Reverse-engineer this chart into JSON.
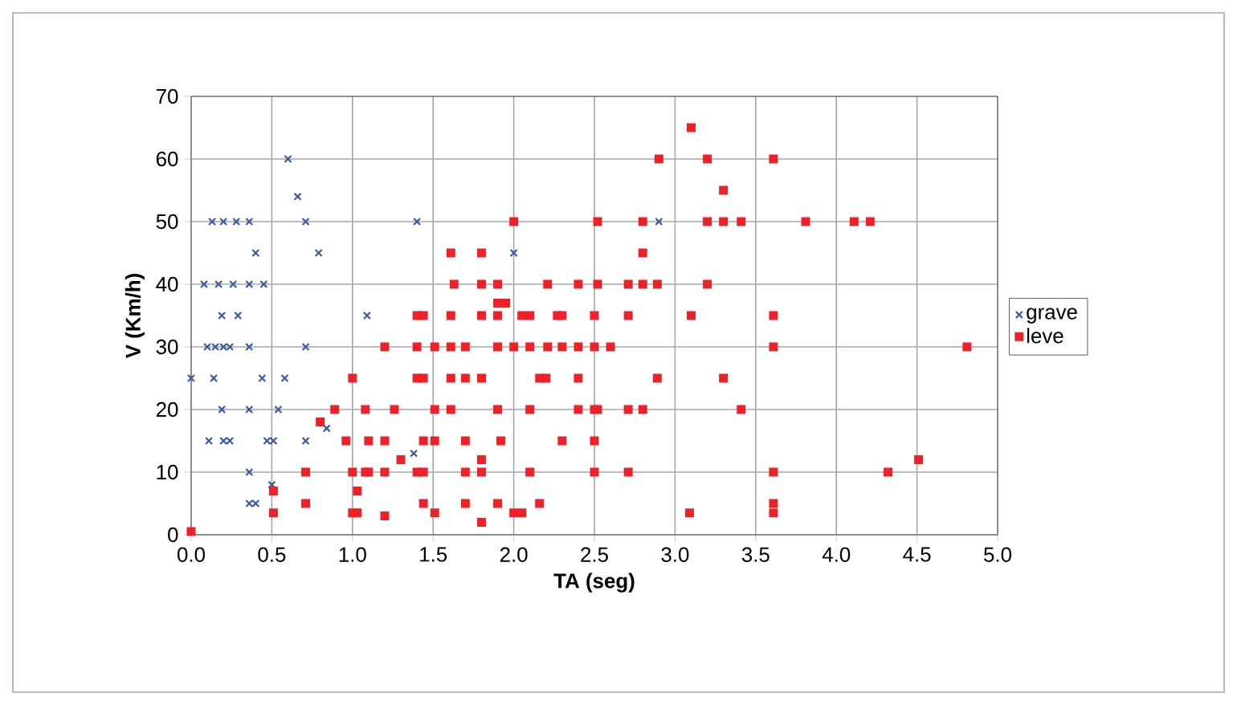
{
  "chart_data": {
    "type": "scatter",
    "xlabel": "TA (seg)",
    "ylabel": "V (Km/h)",
    "xlim": [
      0,
      5
    ],
    "ylim": [
      0,
      70
    ],
    "xticks": [
      {
        "value": 0,
        "label": "0.0"
      },
      {
        "value": 0.5,
        "label": "0.5"
      },
      {
        "value": 1,
        "label": "1.0"
      },
      {
        "value": 1.5,
        "label": "1.5"
      },
      {
        "value": 2,
        "label": "2.0"
      },
      {
        "value": 2.5,
        "label": "2.5"
      },
      {
        "value": 3,
        "label": "3.0"
      },
      {
        "value": 3.5,
        "label": "3.5"
      },
      {
        "value": 4,
        "label": "4.0"
      },
      {
        "value": 4.5,
        "label": "4.5"
      },
      {
        "value": 5,
        "label": "5.0"
      }
    ],
    "yticks": [
      0,
      10,
      20,
      30,
      40,
      50,
      60,
      70
    ],
    "grid": true,
    "legend": "right",
    "series": [
      {
        "name": "grave",
        "color": "#3a58a8",
        "marker": "cross",
        "x": [
          0,
          0.6,
          0.66,
          0.13,
          0.2,
          0.28,
          0.36,
          0.71,
          1.4,
          2.9,
          2.0,
          0.4,
          0.79,
          0.08,
          0.17,
          0.26,
          0.36,
          0.45,
          0.19,
          0.29,
          1.09,
          0.1,
          0.15,
          0.2,
          0.24,
          0.36,
          0.71,
          0.14,
          0.44,
          0.58,
          0.19,
          0.36,
          0.54,
          0.84,
          0.11,
          0.2,
          0.24,
          0.47,
          0.51,
          0.71,
          1.38,
          0.36,
          0.5,
          0.36,
          0.4
        ],
        "values": [
          25,
          60,
          54,
          50,
          50,
          50,
          50,
          50,
          50,
          50,
          45,
          45,
          45,
          40,
          40,
          40,
          40,
          40,
          35,
          35,
          35,
          30,
          30,
          30,
          30,
          30,
          30,
          25,
          25,
          25,
          20,
          20,
          20,
          17,
          15,
          15,
          15,
          15,
          15,
          15,
          13,
          10,
          8,
          5,
          5
        ]
      },
      {
        "name": "leve",
        "color": "#ee2028",
        "marker": "square",
        "x": [
          0,
          1.61,
          1.63,
          1.4,
          1.44,
          1.61,
          1.2,
          1.4,
          1.51,
          1.61,
          1.7,
          1.0,
          1.4,
          1.44,
          1.61,
          1.7,
          0.89,
          1.08,
          1.26,
          1.51,
          1.61,
          0.8,
          0.96,
          1.1,
          1.2,
          1.44,
          1.51,
          1.7,
          1.3,
          0.71,
          1.0,
          1.08,
          1.1,
          1.2,
          1.4,
          1.44,
          1.7,
          0.51,
          1.03,
          0.71,
          1.44,
          1.7,
          0.51,
          1.0,
          1.03,
          1.51,
          1.2,
          3.1,
          2.9,
          2.0,
          2.52,
          2.8,
          1.8,
          2.8,
          1.8,
          1.9,
          2.21,
          2.4,
          2.52,
          2.71,
          2.8,
          2.89,
          1.9,
          1.95,
          1.8,
          1.9,
          2.05,
          2.1,
          2.27,
          2.3,
          2.5,
          2.71,
          3.1,
          1.9,
          2.0,
          2.1,
          2.21,
          2.3,
          2.4,
          2.5,
          2.6,
          1.8,
          2.16,
          2.2,
          2.4,
          2.89,
          1.9,
          2.1,
          2.4,
          2.5,
          2.52,
          2.71,
          2.8,
          1.92,
          2.3,
          2.5,
          1.8,
          1.8,
          2.1,
          2.5,
          2.71,
          1.9,
          2.16,
          2.0,
          2.05,
          3.09,
          1.8,
          3.2,
          3.61,
          3.3,
          3.2,
          3.3,
          3.41,
          3.81,
          4.11,
          4.21,
          3.2,
          3.61,
          3.61,
          4.81,
          3.3,
          3.41,
          4.51,
          3.61,
          4.32,
          3.61,
          3.61
        ],
        "values": [
          0.5,
          45,
          40,
          35,
          35,
          35,
          30,
          30,
          30,
          30,
          30,
          25,
          25,
          25,
          25,
          25,
          20,
          20,
          20,
          20,
          20,
          18,
          15,
          15,
          15,
          15,
          15,
          15,
          12,
          10,
          10,
          10,
          10,
          10,
          10,
          10,
          10,
          7,
          7,
          5,
          5,
          5,
          3.5,
          3.5,
          3.5,
          3.5,
          3,
          65,
          60,
          50,
          50,
          50,
          45,
          45,
          40,
          40,
          40,
          40,
          40,
          40,
          40,
          40,
          37,
          37,
          35,
          35,
          35,
          35,
          35,
          35,
          35,
          35,
          35,
          30,
          30,
          30,
          30,
          30,
          30,
          30,
          30,
          25,
          25,
          25,
          25,
          25,
          20,
          20,
          20,
          20,
          20,
          20,
          20,
          15,
          15,
          15,
          12,
          10,
          10,
          10,
          10,
          5,
          5,
          3.5,
          3.5,
          3.5,
          2,
          60,
          60,
          55,
          50,
          50,
          50,
          50,
          50,
          50,
          40,
          35,
          30,
          30,
          25,
          20,
          12,
          10,
          10,
          5,
          3.5
        ]
      }
    ]
  }
}
